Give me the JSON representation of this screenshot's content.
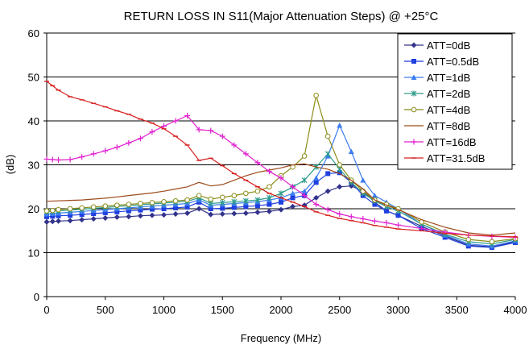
{
  "chart_data": {
    "type": "line",
    "title": "RETURN LOSS IN S11(Major Attenuation Steps) @ +25°C",
    "xlabel": "Frequency (MHz)",
    "ylabel": "(dB)",
    "xlim": [
      0,
      4000
    ],
    "ylim": [
      0,
      60
    ],
    "xticks": [
      0,
      500,
      1000,
      1500,
      2000,
      2500,
      3000,
      3500,
      4000
    ],
    "yticks": [
      0,
      10,
      20,
      30,
      40,
      50,
      60
    ],
    "grid": "horizontal",
    "legend_position": "top-right",
    "series": [
      {
        "name": "ATT=0dB",
        "color": "#33338C",
        "marker": "diamond",
        "points": [
          [
            0,
            17
          ],
          [
            50,
            17.1
          ],
          [
            100,
            17.2
          ],
          [
            200,
            17.3
          ],
          [
            300,
            17.5
          ],
          [
            400,
            17.7
          ],
          [
            500,
            17.9
          ],
          [
            600,
            18.1
          ],
          [
            700,
            18.2
          ],
          [
            800,
            18.4
          ],
          [
            900,
            18.5
          ],
          [
            1000,
            18.6
          ],
          [
            1100,
            18.8
          ],
          [
            1200,
            19
          ],
          [
            1300,
            20
          ],
          [
            1400,
            18.7
          ],
          [
            1500,
            18.8
          ],
          [
            1600,
            18.9
          ],
          [
            1700,
            19
          ],
          [
            1800,
            19.2
          ],
          [
            1900,
            19.4
          ],
          [
            2000,
            19.8
          ],
          [
            2100,
            20.5
          ],
          [
            2200,
            20.8
          ],
          [
            2300,
            22.5
          ],
          [
            2400,
            24
          ],
          [
            2500,
            25
          ],
          [
            2600,
            25.2
          ],
          [
            2700,
            24
          ],
          [
            2800,
            21.5
          ],
          [
            2900,
            19.5
          ],
          [
            3000,
            18.5
          ],
          [
            3200,
            16
          ],
          [
            3400,
            13.8
          ],
          [
            3600,
            11.7
          ],
          [
            3800,
            11.3
          ],
          [
            4000,
            12.5
          ]
        ]
      },
      {
        "name": "ATT=0.5dB",
        "color": "#1F3FE0",
        "marker": "square",
        "points": [
          [
            0,
            18.2
          ],
          [
            50,
            18.3
          ],
          [
            100,
            18.4
          ],
          [
            200,
            18.5
          ],
          [
            300,
            18.7
          ],
          [
            400,
            18.9
          ],
          [
            500,
            19.1
          ],
          [
            600,
            19.3
          ],
          [
            700,
            19.5
          ],
          [
            800,
            19.7
          ],
          [
            900,
            19.9
          ],
          [
            1000,
            20
          ],
          [
            1100,
            20.2
          ],
          [
            1200,
            20.4
          ],
          [
            1300,
            21.5
          ],
          [
            1400,
            20
          ],
          [
            1500,
            20.1
          ],
          [
            1600,
            20.3
          ],
          [
            1700,
            20.5
          ],
          [
            1800,
            20.7
          ],
          [
            1900,
            21
          ],
          [
            2000,
            21.5
          ],
          [
            2100,
            22.5
          ],
          [
            2200,
            23
          ],
          [
            2300,
            26
          ],
          [
            2400,
            28
          ],
          [
            2500,
            28.2
          ],
          [
            2600,
            26
          ],
          [
            2700,
            23
          ],
          [
            2800,
            21
          ],
          [
            2900,
            19.5
          ],
          [
            3000,
            18.5
          ],
          [
            3200,
            15.5
          ],
          [
            3400,
            13.5
          ],
          [
            3600,
            11.5
          ],
          [
            3800,
            11.2
          ],
          [
            4000,
            12.3
          ]
        ]
      },
      {
        "name": "ATT=1dB",
        "color": "#3C7CF0",
        "marker": "triangle",
        "points": [
          [
            0,
            18.8
          ],
          [
            50,
            18.9
          ],
          [
            100,
            19
          ],
          [
            200,
            19.2
          ],
          [
            300,
            19.4
          ],
          [
            400,
            19.6
          ],
          [
            500,
            19.8
          ],
          [
            600,
            20
          ],
          [
            700,
            20.2
          ],
          [
            800,
            20.4
          ],
          [
            900,
            20.6
          ],
          [
            1000,
            20.8
          ],
          [
            1100,
            21
          ],
          [
            1200,
            21.2
          ],
          [
            1300,
            22
          ],
          [
            1400,
            20.8
          ],
          [
            1500,
            21
          ],
          [
            1600,
            21.2
          ],
          [
            1700,
            21.4
          ],
          [
            1800,
            21.6
          ],
          [
            1900,
            22
          ],
          [
            2000,
            22.5
          ],
          [
            2100,
            23.5
          ],
          [
            2200,
            24
          ],
          [
            2300,
            27
          ],
          [
            2400,
            32
          ],
          [
            2500,
            39
          ],
          [
            2600,
            33
          ],
          [
            2700,
            26.5
          ],
          [
            2800,
            23
          ],
          [
            2900,
            21.5
          ],
          [
            3000,
            20
          ],
          [
            3200,
            16.5
          ],
          [
            3400,
            14
          ],
          [
            3600,
            12
          ],
          [
            3800,
            11.5
          ],
          [
            4000,
            12.7
          ]
        ]
      },
      {
        "name": "ATT=2dB",
        "color": "#2E9C8C",
        "marker": "star",
        "points": [
          [
            0,
            19.3
          ],
          [
            50,
            19.4
          ],
          [
            100,
            19.5
          ],
          [
            200,
            19.7
          ],
          [
            300,
            19.9
          ],
          [
            400,
            20.1
          ],
          [
            500,
            20.3
          ],
          [
            600,
            20.5
          ],
          [
            700,
            20.7
          ],
          [
            800,
            20.9
          ],
          [
            900,
            21.1
          ],
          [
            1000,
            21.3
          ],
          [
            1100,
            21.5
          ],
          [
            1200,
            21.7
          ],
          [
            1300,
            22.5
          ],
          [
            1400,
            21.2
          ],
          [
            1500,
            21.4
          ],
          [
            1600,
            21.6
          ],
          [
            1700,
            21.8
          ],
          [
            1800,
            22
          ],
          [
            1900,
            22.5
          ],
          [
            2000,
            23.5
          ],
          [
            2100,
            25
          ],
          [
            2200,
            26.5
          ],
          [
            2300,
            29.5
          ],
          [
            2400,
            32.5
          ],
          [
            2500,
            29
          ],
          [
            2600,
            26
          ],
          [
            2700,
            23.5
          ],
          [
            2800,
            21.8
          ],
          [
            2900,
            20.5
          ],
          [
            3000,
            19.5
          ],
          [
            3200,
            16.5
          ],
          [
            3400,
            14.2
          ],
          [
            3600,
            12.5
          ],
          [
            3800,
            12
          ],
          [
            4000,
            13
          ]
        ]
      },
      {
        "name": "ATT=4dB",
        "color": "#8C8C1A",
        "marker": "circle",
        "points": [
          [
            0,
            19.5
          ],
          [
            50,
            19.6
          ],
          [
            100,
            19.8
          ],
          [
            200,
            20
          ],
          [
            300,
            20.2
          ],
          [
            400,
            20.4
          ],
          [
            500,
            20.6
          ],
          [
            600,
            20.8
          ],
          [
            700,
            21
          ],
          [
            800,
            21.2
          ],
          [
            900,
            21.4
          ],
          [
            1000,
            21.6
          ],
          [
            1100,
            21.8
          ],
          [
            1200,
            22
          ],
          [
            1300,
            23
          ],
          [
            1400,
            22.2
          ],
          [
            1500,
            22.6
          ],
          [
            1600,
            23
          ],
          [
            1700,
            23.5
          ],
          [
            1800,
            24
          ],
          [
            1900,
            25
          ],
          [
            2000,
            27.5
          ],
          [
            2100,
            29.5
          ],
          [
            2200,
            32
          ],
          [
            2300,
            45.8
          ],
          [
            2400,
            36.5
          ],
          [
            2500,
            30
          ],
          [
            2600,
            26.5
          ],
          [
            2700,
            24
          ],
          [
            2800,
            22
          ],
          [
            2900,
            21
          ],
          [
            3000,
            20
          ],
          [
            3200,
            17
          ],
          [
            3400,
            14.7
          ],
          [
            3600,
            13
          ],
          [
            3800,
            12.5
          ],
          [
            4000,
            13.2
          ]
        ]
      },
      {
        "name": "ATT=8dB",
        "color": "#9C4A1A",
        "marker": "none",
        "points": [
          [
            0,
            21.7
          ],
          [
            100,
            21.8
          ],
          [
            200,
            21.9
          ],
          [
            300,
            22
          ],
          [
            400,
            22.2
          ],
          [
            500,
            22.4
          ],
          [
            600,
            22.7
          ],
          [
            700,
            23
          ],
          [
            800,
            23.3
          ],
          [
            900,
            23.6
          ],
          [
            1000,
            24
          ],
          [
            1100,
            24.5
          ],
          [
            1200,
            25
          ],
          [
            1300,
            26
          ],
          [
            1400,
            25.2
          ],
          [
            1500,
            25.5
          ],
          [
            1600,
            26.5
          ],
          [
            1700,
            27.5
          ],
          [
            1800,
            28.3
          ],
          [
            1900,
            28.8
          ],
          [
            2000,
            29.3
          ],
          [
            2100,
            30
          ],
          [
            2200,
            30.2
          ],
          [
            2300,
            29.5
          ],
          [
            2400,
            29
          ],
          [
            2500,
            28
          ],
          [
            2600,
            26.5
          ],
          [
            2700,
            24.5
          ],
          [
            2800,
            22
          ],
          [
            2900,
            20.8
          ],
          [
            3000,
            19.8
          ],
          [
            3200,
            17.5
          ],
          [
            3400,
            15.8
          ],
          [
            3600,
            14.5
          ],
          [
            3800,
            14
          ],
          [
            4000,
            14.5
          ]
        ]
      },
      {
        "name": "ATT=16dB",
        "color": "#E020D0",
        "marker": "plus",
        "points": [
          [
            0,
            31.3
          ],
          [
            50,
            31.2
          ],
          [
            100,
            31.1
          ],
          [
            200,
            31.2
          ],
          [
            300,
            31.8
          ],
          [
            400,
            32.5
          ],
          [
            500,
            33.2
          ],
          [
            600,
            34
          ],
          [
            700,
            35
          ],
          [
            800,
            36
          ],
          [
            900,
            37.5
          ],
          [
            1000,
            38.8
          ],
          [
            1100,
            40
          ],
          [
            1200,
            41.2
          ],
          [
            1300,
            38
          ],
          [
            1400,
            37.8
          ],
          [
            1500,
            36.5
          ],
          [
            1600,
            34.5
          ],
          [
            1700,
            32.5
          ],
          [
            1800,
            30.5
          ],
          [
            1900,
            28.5
          ],
          [
            2000,
            27
          ],
          [
            2100,
            25
          ],
          [
            2200,
            23
          ],
          [
            2300,
            21
          ],
          [
            2400,
            19.8
          ],
          [
            2500,
            18.8
          ],
          [
            2600,
            18.2
          ],
          [
            2700,
            17.7
          ],
          [
            2800,
            17.2
          ],
          [
            2900,
            16.8
          ],
          [
            3000,
            16.3
          ],
          [
            3200,
            15.5
          ],
          [
            3400,
            14.7
          ],
          [
            3600,
            14
          ],
          [
            3800,
            13.7
          ],
          [
            4000,
            13.5
          ]
        ]
      },
      {
        "name": "ATT=31.5dB",
        "color": "#D82020",
        "marker": "dash",
        "points": [
          [
            0,
            49
          ],
          [
            50,
            48
          ],
          [
            100,
            47
          ],
          [
            200,
            45.5
          ],
          [
            300,
            44.8
          ],
          [
            400,
            44
          ],
          [
            500,
            43.2
          ],
          [
            600,
            42.3
          ],
          [
            700,
            41.5
          ],
          [
            800,
            40.4
          ],
          [
            900,
            39.5
          ],
          [
            1000,
            38.2
          ],
          [
            1100,
            36.5
          ],
          [
            1200,
            34.5
          ],
          [
            1300,
            31
          ],
          [
            1400,
            31.5
          ],
          [
            1500,
            29.8
          ],
          [
            1600,
            28
          ],
          [
            1700,
            26.5
          ],
          [
            1800,
            25
          ],
          [
            1900,
            23.5
          ],
          [
            2000,
            22.5
          ],
          [
            2100,
            21.5
          ],
          [
            2200,
            20.5
          ],
          [
            2300,
            19.3
          ],
          [
            2400,
            18.5
          ],
          [
            2500,
            17.8
          ],
          [
            2600,
            17.3
          ],
          [
            2700,
            16.8
          ],
          [
            2800,
            16.2
          ],
          [
            2900,
            15.8
          ],
          [
            3000,
            15.4
          ],
          [
            3200,
            15
          ],
          [
            3400,
            14.4
          ],
          [
            3600,
            14
          ],
          [
            3800,
            13.8
          ],
          [
            4000,
            13.6
          ]
        ]
      }
    ]
  }
}
